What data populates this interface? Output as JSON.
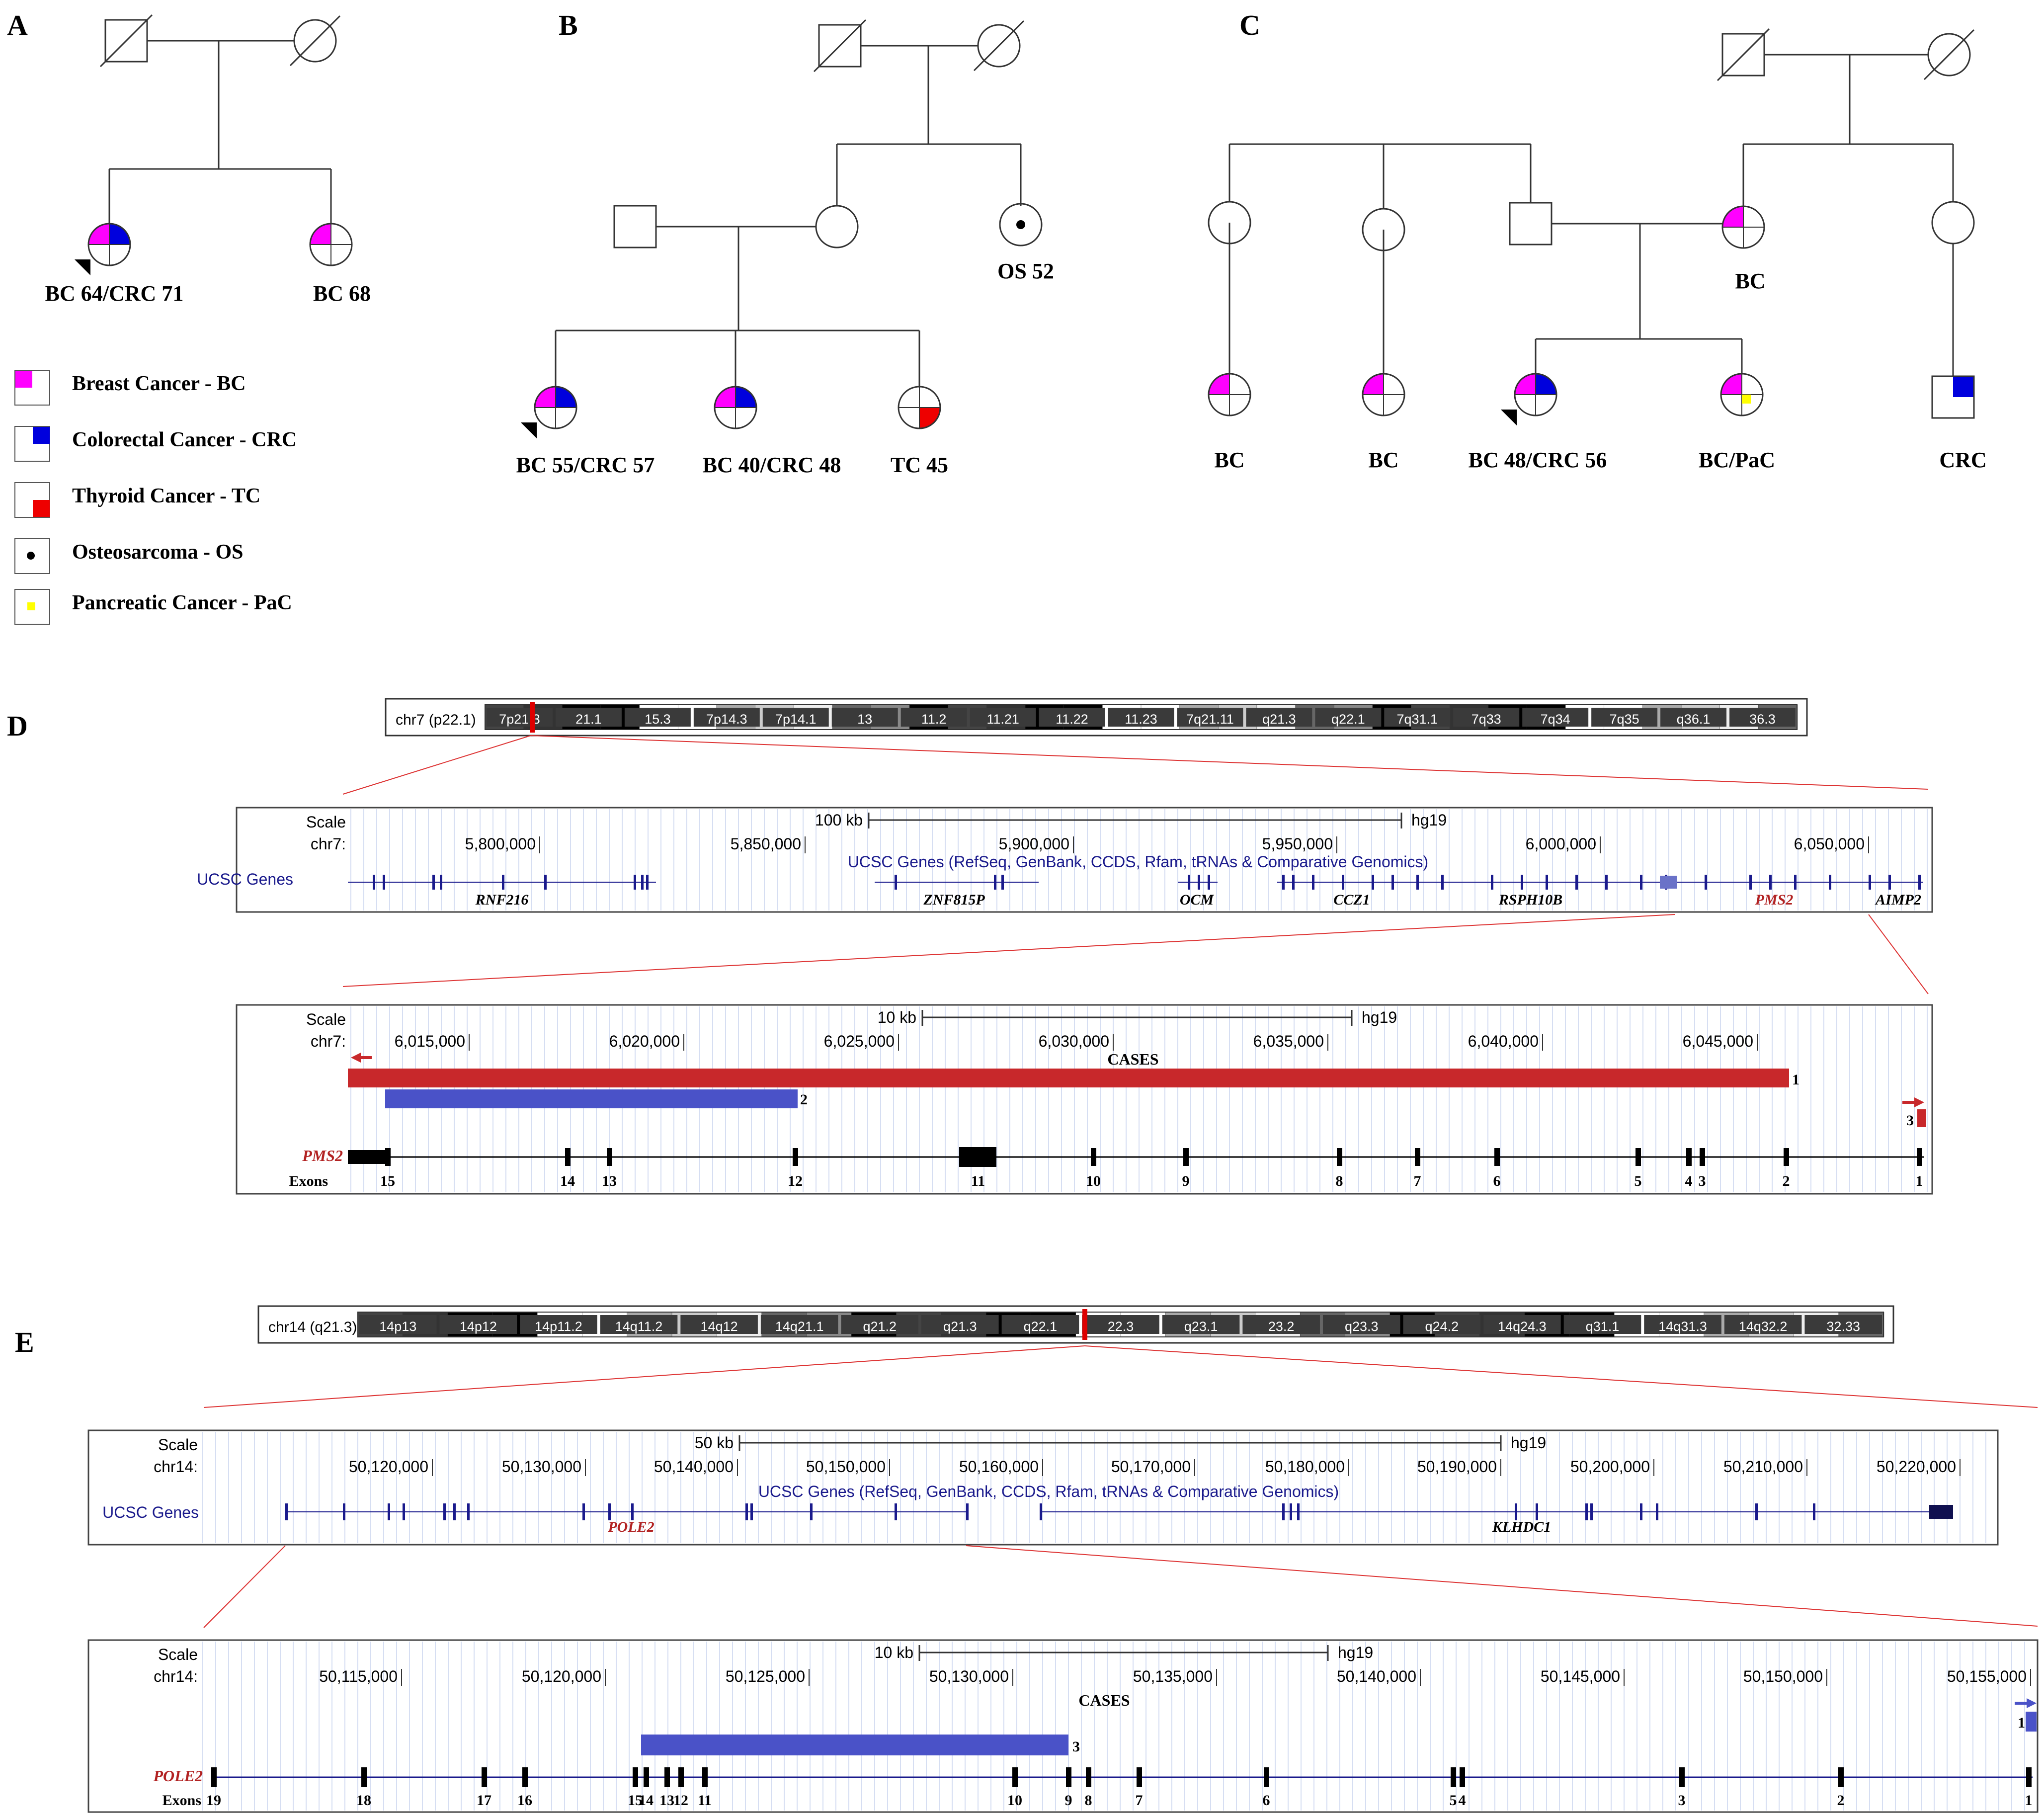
{
  "colors": {
    "breast": "#ff00ff",
    "colorectal": "#0000dd",
    "thyroid": "#ee0000",
    "pancreatic": "#ffff00",
    "ucsc_gene": "#1a1a8c",
    "case_red": "#c8282b",
    "case_blue": "#4a52c8",
    "highlight_red": "#b22222",
    "frame": "#555555",
    "grid": "#c9d3ee"
  },
  "panel_labels": [
    "A",
    "B",
    "C",
    "D",
    "E"
  ],
  "panelA": {
    "affected": [
      {
        "label": "BC 64/CRC 71"
      },
      {
        "label": "BC 68"
      }
    ]
  },
  "legend": [
    {
      "text": "Breast Cancer  - BC",
      "color_key": "breast"
    },
    {
      "text": "Colorectal Cancer  - CRC",
      "color_key": "colorectal"
    },
    {
      "text": "Thyroid Cancer  - TC",
      "color_key": "thyroid"
    },
    {
      "text": "Osteosarcoma  - OS",
      "color_key": "dot"
    },
    {
      "text": "Pancreatic Cancer - PaC",
      "color_key": "pancreatic"
    }
  ],
  "panelB": {
    "affected": [
      {
        "label": "OS 52"
      },
      {
        "label": "BC 55/CRC 57"
      },
      {
        "label": "BC 40/CRC 48"
      },
      {
        "label": "TC 45"
      }
    ]
  },
  "panelC": {
    "affected": [
      {
        "label": "BC"
      },
      {
        "label": "BC"
      },
      {
        "label": "BC"
      },
      {
        "label": "BC 48/CRC 56"
      },
      {
        "label": "BC/PaC"
      },
      {
        "label": "CRC"
      }
    ]
  },
  "panelD": {
    "ideogram_label": "chr7 (p22.1)",
    "ideogram_bands": [
      "7p21.3",
      "21.1",
      "15.3",
      "7p14.3",
      "7p14.1",
      "13",
      "11.2",
      "11.21",
      "11.22",
      "11.23",
      "7q21.11",
      "q21.3",
      "q22.1",
      "7q31.1",
      "7q33",
      "7q34",
      "7q35",
      "q36.1",
      "36.3"
    ],
    "track1": {
      "scale_label": "Scale",
      "chr_label": "chr7:",
      "scalebar_label": "100 kb",
      "assembly": "hg19",
      "positions": [
        "5,800,000",
        "5,850,000",
        "5,900,000",
        "5,950,000",
        "6,000,000",
        "6,050,000"
      ],
      "genes_track_label": "UCSC Genes",
      "genes_track_title": "UCSC Genes (RefSeq, GenBank, CCDS, Rfam, tRNAs & Comparative Genomics)",
      "genes": [
        "RNF216",
        "ZNF815P",
        "OCM",
        "CCZ1",
        "RSPH10B",
        "PMS2",
        "AIMP2"
      ]
    },
    "track2": {
      "scale_label": "Scale",
      "chr_label": "chr7:",
      "scalebar_label": "10 kb",
      "assembly": "hg19",
      "positions": [
        "6,015,000",
        "6,020,000",
        "6,025,000",
        "6,030,000",
        "6,035,000",
        "6,040,000",
        "6,045,000"
      ],
      "cases_label": "CASES",
      "cases": [
        {
          "id": "1",
          "color_key": "case_red"
        },
        {
          "id": "2",
          "color_key": "case_blue"
        },
        {
          "id": "3",
          "color_key": "case_red"
        }
      ],
      "gene_label": "PMS2",
      "exons_label": "Exons",
      "exons": [
        "15",
        "14",
        "13",
        "12",
        "11",
        "10",
        "9",
        "8",
        "7",
        "6",
        "5",
        "4",
        "3",
        "2",
        "1"
      ]
    }
  },
  "panelE": {
    "ideogram_label": "chr14 (q21.3)",
    "ideogram_bands": [
      "14p13",
      "14p12",
      "14p11.2",
      "14q11.2",
      "14q12",
      "14q21.1",
      "q21.2",
      "q21.3",
      "q22.1",
      "22.3",
      "q23.1",
      "23.2",
      "q23.3",
      "q24.2",
      "14q24.3",
      "q31.1",
      "14q31.3",
      "14q32.2",
      "32.33"
    ],
    "track1": {
      "scale_label": "Scale",
      "chr_label": "chr14:",
      "scalebar_label": "50 kb",
      "assembly": "hg19",
      "positions": [
        "50,120,000",
        "50,130,000",
        "50,140,000",
        "50,150,000",
        "50,160,000",
        "50,170,000",
        "50,180,000",
        "50,190,000",
        "50,200,000",
        "50,210,000",
        "50,220,000"
      ],
      "genes_track_label": "UCSC Genes",
      "genes_track_title": "UCSC Genes (RefSeq, GenBank, CCDS, Rfam, tRNAs & Comparative Genomics)",
      "genes": [
        "POLE2",
        "KLHDC1"
      ]
    },
    "track2": {
      "scale_label": "Scale",
      "chr_label": "chr14:",
      "scalebar_label": "10 kb",
      "assembly": "hg19",
      "positions": [
        "50,115,000",
        "50,120,000",
        "50,125,000",
        "50,130,000",
        "50,135,000",
        "50,140,000",
        "50,145,000",
        "50,150,000",
        "50,155,000"
      ],
      "cases_label": "CASES",
      "cases": [
        {
          "id": "3",
          "color_key": "case_blue"
        },
        {
          "id": "1",
          "color_key": "case_blue"
        }
      ],
      "gene_label": "POLE2",
      "exons_label": "Exons",
      "exons": [
        "19",
        "18",
        "17",
        "16",
        "15",
        "14",
        "13",
        "12",
        "11",
        "10",
        "9",
        "8",
        "7",
        "6",
        "5",
        "4",
        "3",
        "2",
        "1"
      ]
    }
  }
}
